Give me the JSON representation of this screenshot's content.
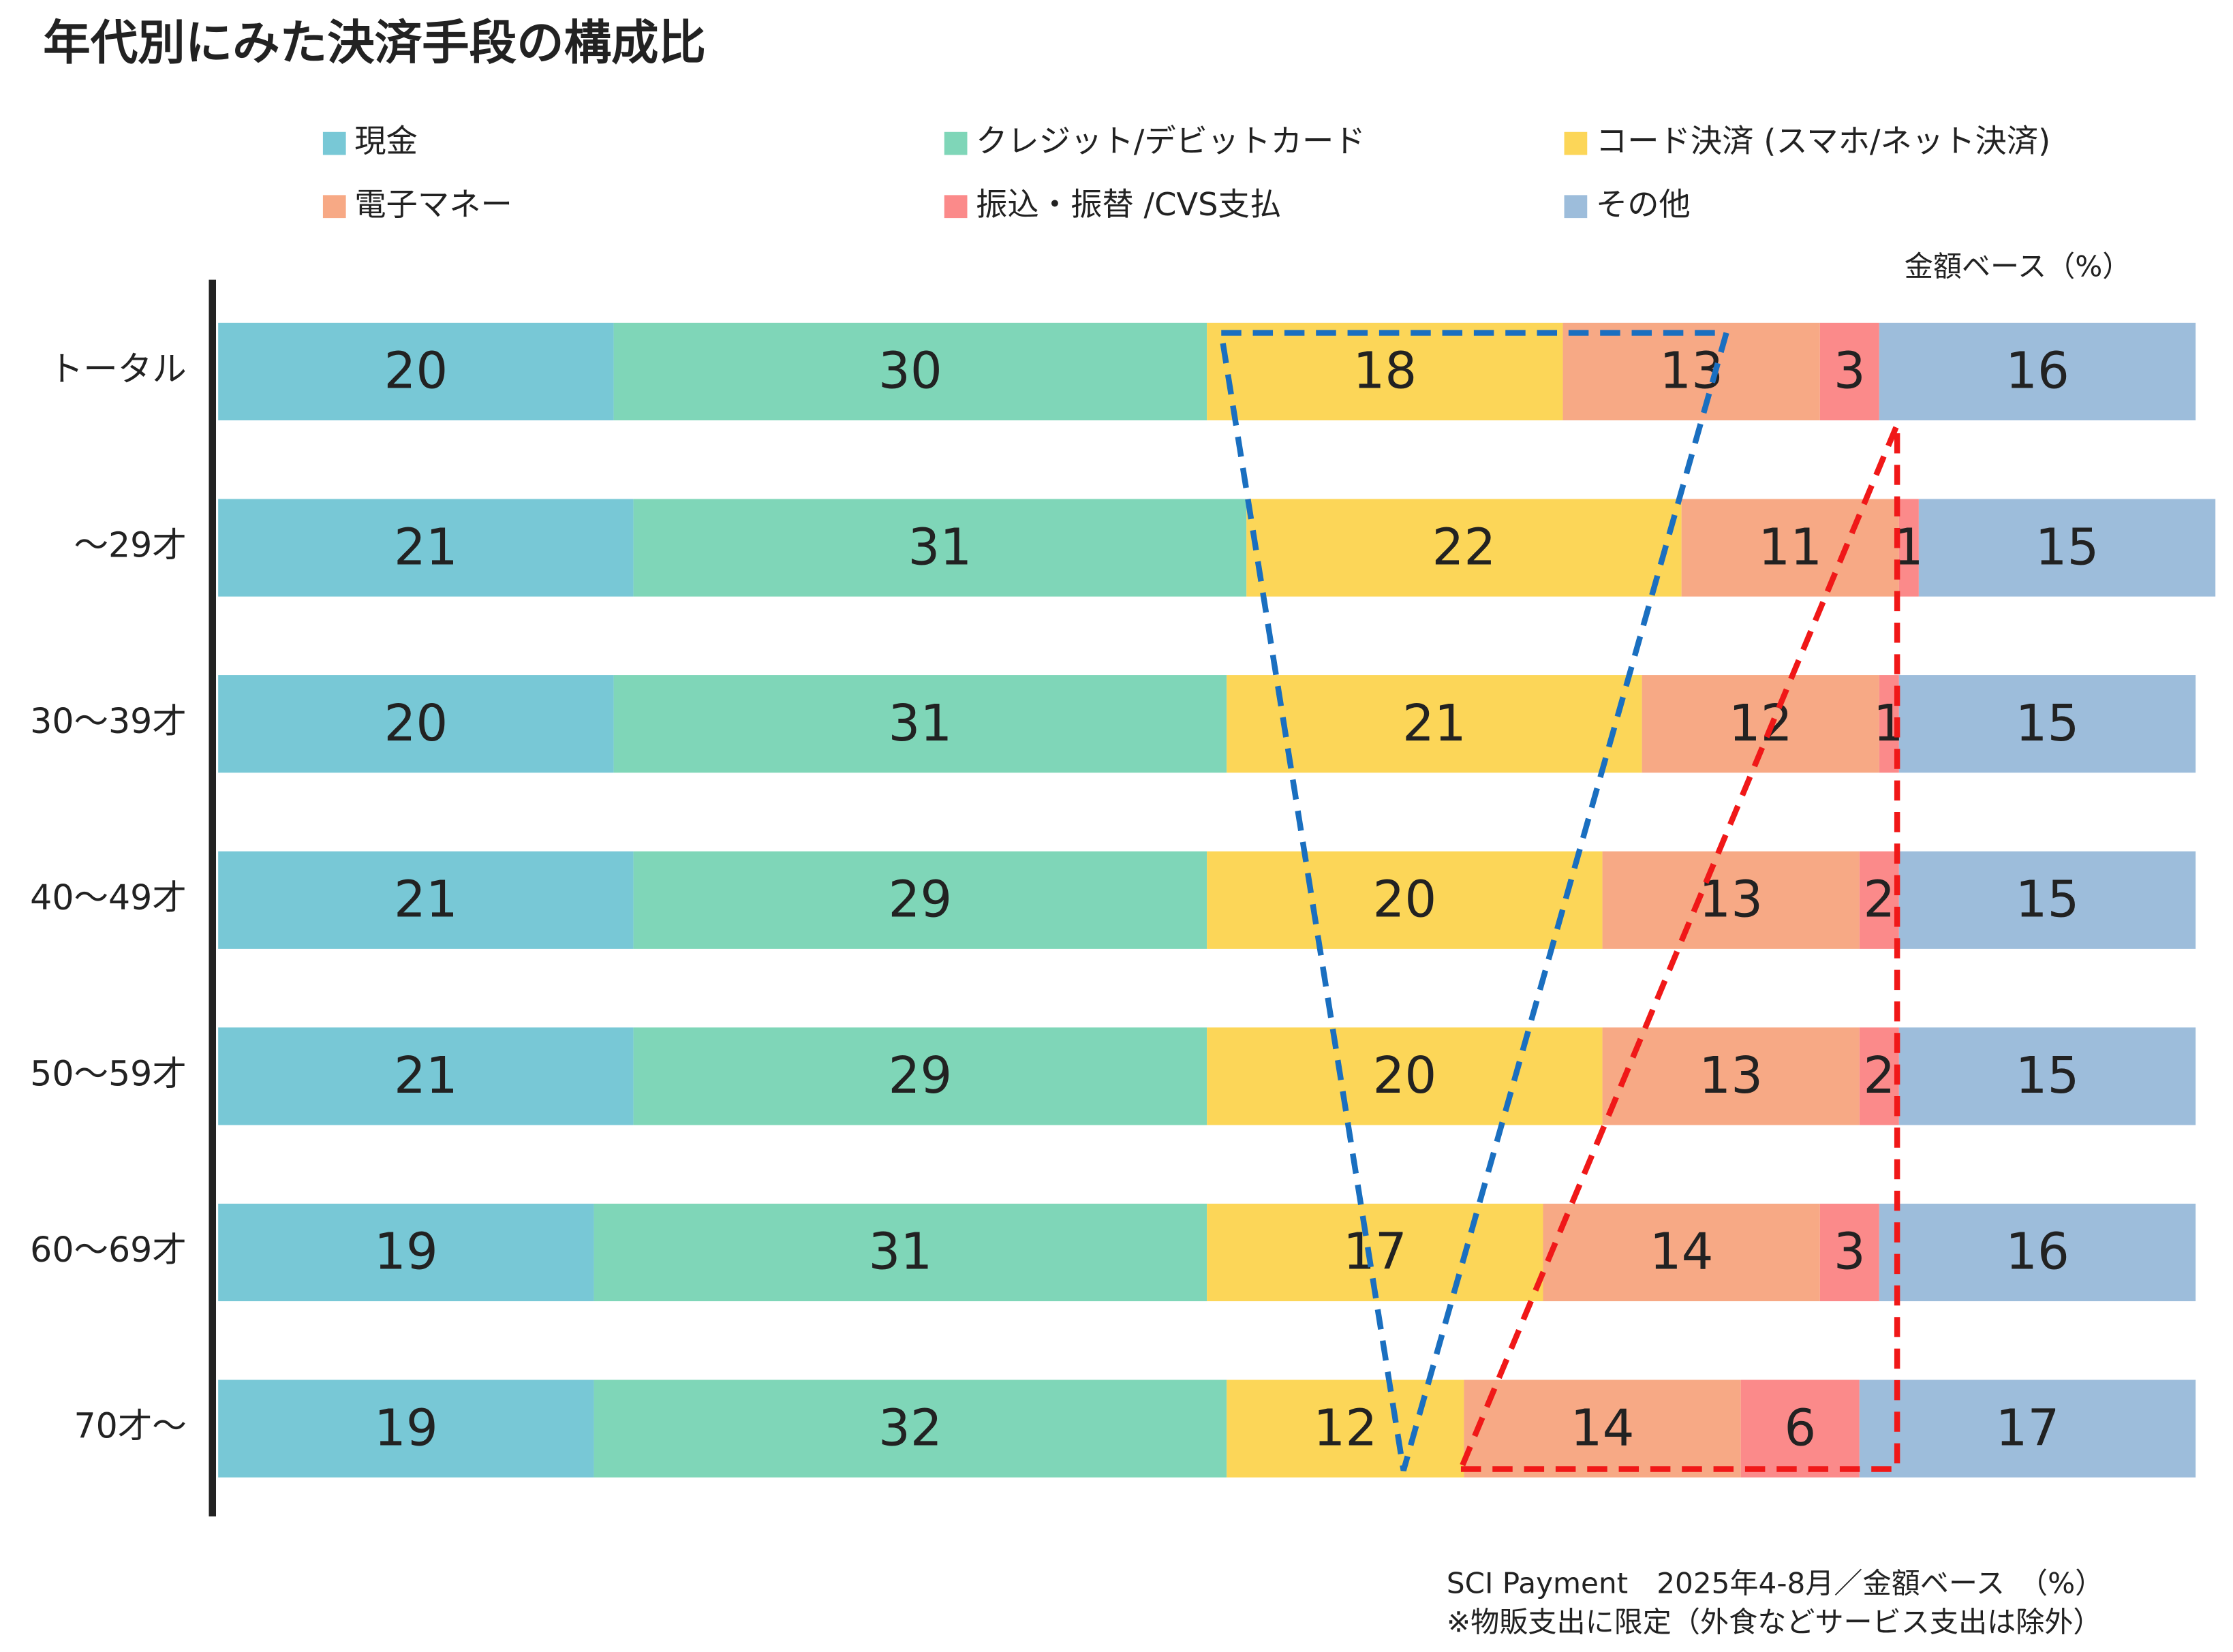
{
  "chart_data": {
    "type": "stacked-bar-horizontal",
    "title": "年代別にみた決済手段の構成比",
    "unit_note": "金額ベース（%）",
    "footnote": [
      "SCI Payment　2025年4-8月／金額ベース　（%）",
      "※物販支出に限定（外食などサービス支出は除外）"
    ],
    "categories": [
      "トータル",
      "～29才",
      "30～39才",
      "40～49才",
      "50～59才",
      "60～69才",
      "70才～"
    ],
    "xlim": [
      0,
      100
    ],
    "series": [
      {
        "name": "現金",
        "color": "#78c8d6",
        "values": [
          20,
          21,
          20,
          21,
          21,
          19,
          19
        ]
      },
      {
        "name": "クレジット/デビットカード",
        "color": "#7fd6b8",
        "values": [
          30,
          31,
          31,
          29,
          29,
          31,
          32
        ]
      },
      {
        "name": "コード決済 (スマホ/ネット決済)",
        "color": "#fcd658",
        "values": [
          18,
          22,
          21,
          20,
          20,
          17,
          12
        ]
      },
      {
        "name": "電子マネー",
        "color": "#f7a985",
        "values": [
          13,
          11,
          12,
          13,
          13,
          14,
          14
        ]
      },
      {
        "name": "振込・振替 /CVS支払",
        "color": "#fb8a8a",
        "values": [
          3,
          1,
          1,
          2,
          2,
          3,
          6
        ]
      },
      {
        "name": "その他",
        "color": "#9dbddb",
        "values": [
          16,
          15,
          15,
          15,
          15,
          16,
          17
        ]
      }
    ]
  }
}
